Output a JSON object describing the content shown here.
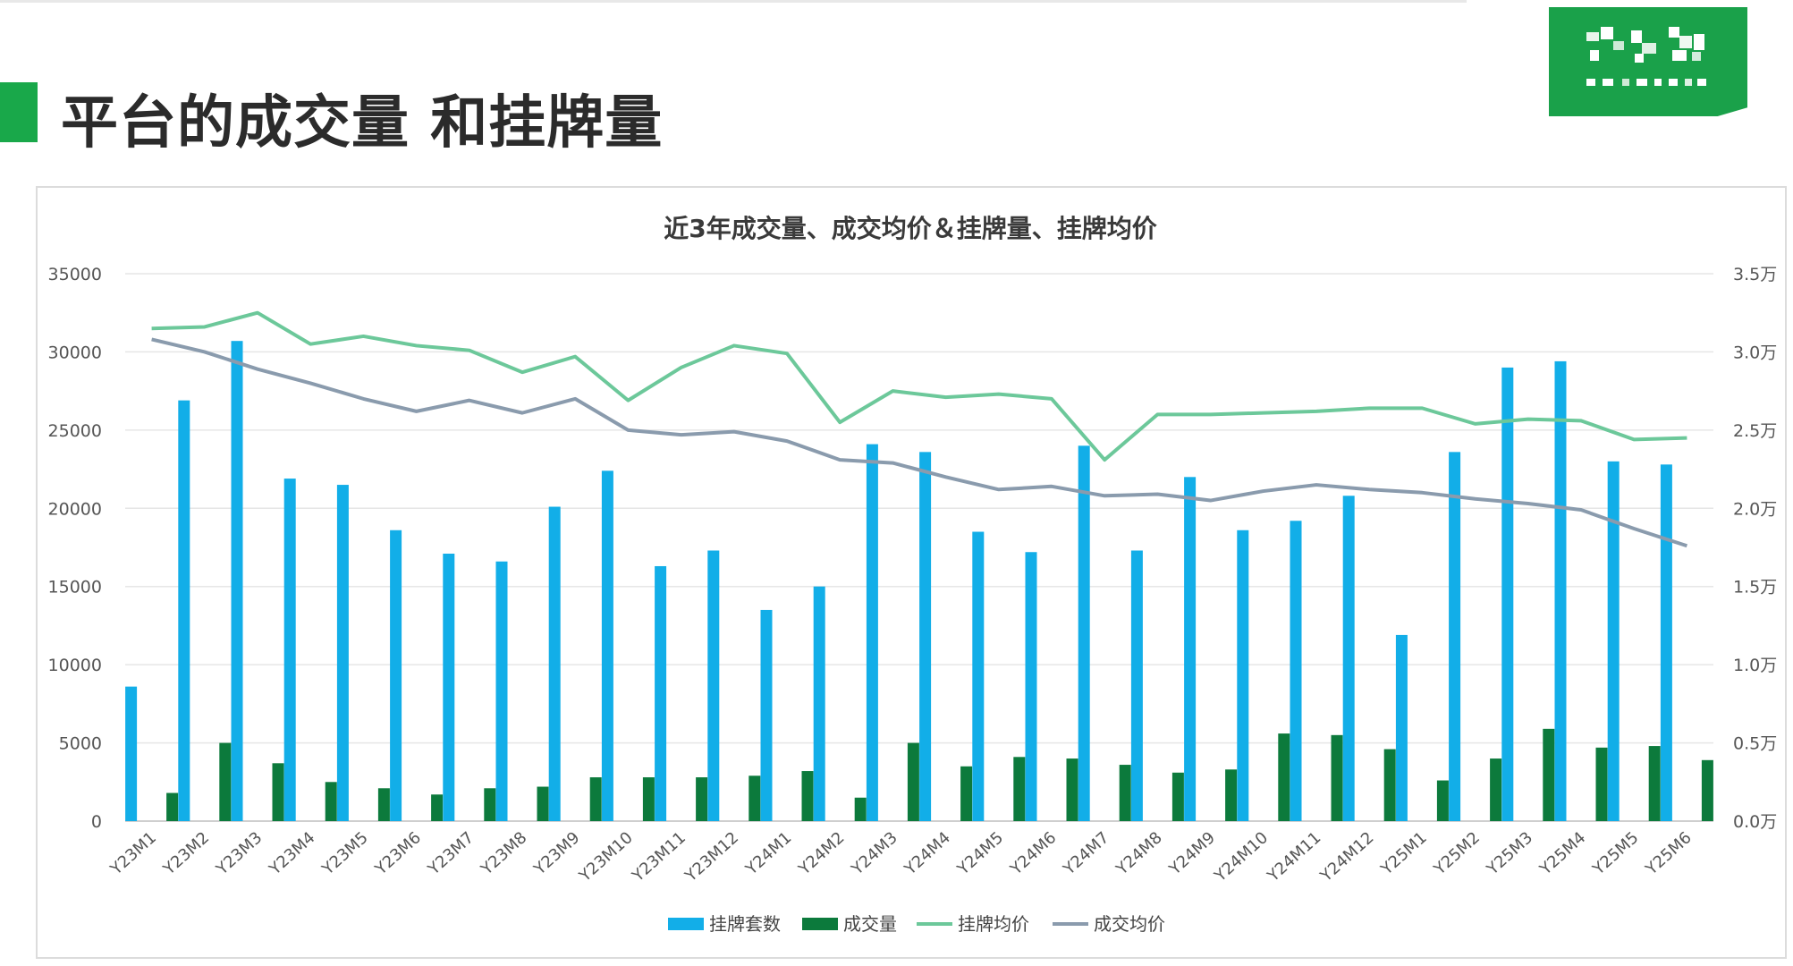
{
  "page": {
    "title": "平台的成交量 和挂牌量",
    "accent_color": "#19a84a",
    "logo": "blurred-green-logo"
  },
  "chart_data": {
    "type": "bar",
    "title": "近3年成交量、成交均价＆挂牌量、挂牌均价",
    "categories": [
      "Y23M1",
      "Y23M2",
      "Y23M3",
      "Y23M4",
      "Y23M5",
      "Y23M6",
      "Y23M7",
      "Y23M8",
      "Y23M9",
      "Y23M10",
      "Y23M11",
      "Y23M12",
      "Y24M1",
      "Y24M2",
      "Y24M3",
      "Y24M4",
      "Y24M5",
      "Y24M6",
      "Y24M7",
      "Y24M8",
      "Y24M9",
      "Y24M10",
      "Y24M11",
      "Y24M12",
      "Y25M1",
      "Y25M2",
      "Y25M3",
      "Y25M4",
      "Y25M5",
      "Y25M6"
    ],
    "left_axis": {
      "ylim": [
        0,
        35000
      ],
      "ticks": [
        "0",
        "5000",
        "10000",
        "15000",
        "20000",
        "25000",
        "30000",
        "35000"
      ]
    },
    "right_axis": {
      "ylim": [
        0,
        35000
      ],
      "ticks": [
        "0.0万",
        "0.5万",
        "1.0万",
        "1.5万",
        "2.0万",
        "2.5万",
        "3.0万",
        "3.5万"
      ]
    },
    "grid": true,
    "legend_position": "bottom",
    "series": [
      {
        "name": "挂牌套数",
        "type": "bar",
        "axis": "left",
        "color": "#12aee8",
        "values": [
          8600,
          26900,
          30700,
          21900,
          21500,
          18600,
          17100,
          16600,
          20100,
          22400,
          16300,
          17300,
          13500,
          15000,
          24100,
          23600,
          18500,
          17200,
          24000,
          17300,
          22000,
          18600,
          19200,
          20800,
          11900,
          23600,
          29000,
          29400,
          23000,
          22800
        ]
      },
      {
        "name": "成交量",
        "type": "bar",
        "axis": "left",
        "color": "#0c7a3c",
        "values": [
          1800,
          5000,
          3700,
          2500,
          2100,
          1700,
          2100,
          2200,
          2800,
          2800,
          2800,
          2900,
          3200,
          1500,
          5000,
          3500,
          4100,
          4000,
          3600,
          3100,
          3300,
          5600,
          5500,
          4600,
          2600,
          4000,
          5900,
          4700,
          4800,
          3900
        ]
      },
      {
        "name": "挂牌均价",
        "type": "line",
        "axis": "right",
        "color": "#6cc89a",
        "values": [
          31500,
          31600,
          32500,
          30500,
          31000,
          30400,
          30100,
          28700,
          29700,
          26900,
          29000,
          30400,
          29900,
          25500,
          27500,
          27100,
          27300,
          27000,
          23100,
          26000,
          26000,
          26100,
          26200,
          26400,
          26400,
          25400,
          25700,
          25600,
          24400,
          24500
        ]
      },
      {
        "name": "成交均价",
        "type": "line",
        "axis": "right",
        "color": "#8a9bad",
        "values": [
          30800,
          30000,
          28900,
          28000,
          27000,
          26200,
          26900,
          26100,
          27000,
          25000,
          24700,
          24900,
          24300,
          23100,
          22900,
          22000,
          21200,
          21400,
          20800,
          20900,
          20500,
          21100,
          21500,
          21200,
          21000,
          20600,
          20300,
          19900,
          18700,
          17600
        ]
      }
    ]
  }
}
